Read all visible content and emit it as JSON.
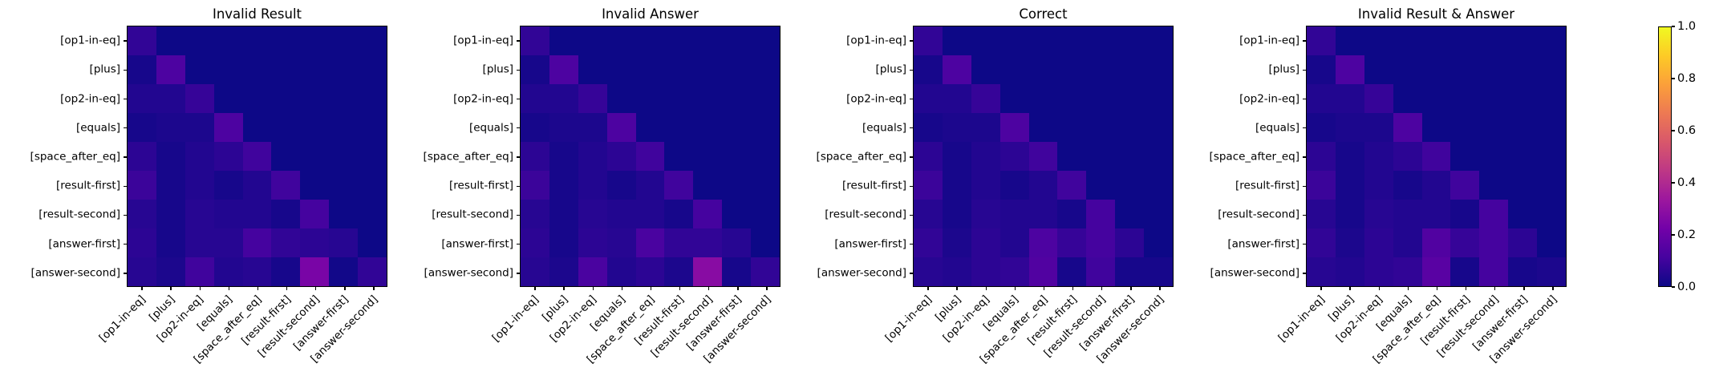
{
  "figure": {
    "background_color": "#ffffff",
    "text_color": "#000000"
  },
  "chart_data": {
    "type": "heatmap",
    "layout": "4 heatmaps side by side sharing one colorbar on the right",
    "colormap": "plasma",
    "vmin": 0.0,
    "vmax": 1.0,
    "grid": false,
    "colormap_anchors": [
      "#0d0887",
      "#46039f",
      "#7201a8",
      "#9c179e",
      "#bd3786",
      "#d8576b",
      "#ed7953",
      "#fb9f3a",
      "#fdca26",
      "#f0f921"
    ],
    "row_labels": [
      "[op1-in-eq]",
      "[plus]",
      "[op2-in-eq]",
      "[equals]",
      "[space_after_eq]",
      "[result-first]",
      "[result-second]",
      "[answer-first]",
      "[answer-second]"
    ],
    "col_labels": [
      "[op1-in-eq]",
      "[plus]",
      "[op2-in-eq]",
      "[equals]",
      "[space_after_eq]",
      "[result-first]",
      "[result-second]",
      "[answer-first]",
      "[answer-second]"
    ],
    "colorbar": {
      "tick_values": [
        0.0,
        0.2,
        0.4,
        0.6,
        0.8,
        1.0
      ],
      "tick_labels": [
        "0.0",
        "0.2",
        "0.4",
        "0.6",
        "0.8",
        "1.0"
      ]
    },
    "charts": [
      {
        "title": "Invalid Result",
        "values": [
          [
            0.07,
            0,
            0,
            0,
            0,
            0,
            0,
            0,
            0
          ],
          [
            0.02,
            0.13,
            0,
            0,
            0,
            0,
            0,
            0,
            0
          ],
          [
            0.04,
            0.04,
            0.08,
            0,
            0,
            0,
            0,
            0,
            0
          ],
          [
            0.02,
            0.03,
            0.03,
            0.13,
            0,
            0,
            0,
            0,
            0
          ],
          [
            0.06,
            0.02,
            0.04,
            0.06,
            0.1,
            0,
            0,
            0,
            0
          ],
          [
            0.09,
            0.02,
            0.04,
            0.02,
            0.04,
            0.1,
            0,
            0,
            0
          ],
          [
            0.05,
            0.02,
            0.05,
            0.04,
            0.04,
            0.02,
            0.11,
            0,
            0
          ],
          [
            0.06,
            0.02,
            0.05,
            0.05,
            0.11,
            0.07,
            0.06,
            0.05,
            0
          ],
          [
            0.05,
            0.03,
            0.1,
            0.04,
            0.05,
            0.02,
            0.24,
            0.01,
            0.07
          ]
        ]
      },
      {
        "title": "Invalid Answer",
        "values": [
          [
            0.07,
            0,
            0,
            0,
            0,
            0,
            0,
            0,
            0
          ],
          [
            0.02,
            0.13,
            0,
            0,
            0,
            0,
            0,
            0,
            0
          ],
          [
            0.04,
            0.04,
            0.08,
            0,
            0,
            0,
            0,
            0,
            0
          ],
          [
            0.02,
            0.03,
            0.03,
            0.13,
            0,
            0,
            0,
            0,
            0
          ],
          [
            0.06,
            0.02,
            0.04,
            0.06,
            0.1,
            0,
            0,
            0,
            0
          ],
          [
            0.09,
            0.02,
            0.04,
            0.02,
            0.04,
            0.1,
            0,
            0,
            0
          ],
          [
            0.05,
            0.02,
            0.05,
            0.04,
            0.04,
            0.02,
            0.11,
            0,
            0
          ],
          [
            0.06,
            0.02,
            0.06,
            0.05,
            0.12,
            0.07,
            0.07,
            0.05,
            0
          ],
          [
            0.05,
            0.03,
            0.12,
            0.04,
            0.06,
            0.03,
            0.28,
            0.02,
            0.07
          ]
        ]
      },
      {
        "title": "Correct",
        "values": [
          [
            0.07,
            0,
            0,
            0,
            0,
            0,
            0,
            0,
            0
          ],
          [
            0.02,
            0.13,
            0,
            0,
            0,
            0,
            0,
            0,
            0
          ],
          [
            0.04,
            0.04,
            0.08,
            0,
            0,
            0,
            0,
            0,
            0
          ],
          [
            0.02,
            0.03,
            0.03,
            0.13,
            0,
            0,
            0,
            0,
            0
          ],
          [
            0.06,
            0.02,
            0.04,
            0.06,
            0.1,
            0,
            0,
            0,
            0
          ],
          [
            0.09,
            0.02,
            0.04,
            0.02,
            0.04,
            0.1,
            0,
            0,
            0
          ],
          [
            0.05,
            0.02,
            0.05,
            0.04,
            0.04,
            0.02,
            0.11,
            0,
            0
          ],
          [
            0.07,
            0.03,
            0.06,
            0.04,
            0.13,
            0.08,
            0.11,
            0.06,
            0
          ],
          [
            0.05,
            0.04,
            0.06,
            0.07,
            0.14,
            0.02,
            0.1,
            0.02,
            0.02
          ]
        ]
      },
      {
        "title": "Invalid Result & Answer",
        "values": [
          [
            0.07,
            0,
            0,
            0,
            0,
            0,
            0,
            0,
            0
          ],
          [
            0.02,
            0.13,
            0,
            0,
            0,
            0,
            0,
            0,
            0
          ],
          [
            0.04,
            0.04,
            0.08,
            0,
            0,
            0,
            0,
            0,
            0
          ],
          [
            0.02,
            0.03,
            0.03,
            0.13,
            0,
            0,
            0,
            0,
            0
          ],
          [
            0.06,
            0.02,
            0.04,
            0.06,
            0.1,
            0,
            0,
            0,
            0
          ],
          [
            0.09,
            0.02,
            0.04,
            0.02,
            0.04,
            0.1,
            0,
            0,
            0
          ],
          [
            0.05,
            0.02,
            0.05,
            0.04,
            0.04,
            0.02,
            0.11,
            0,
            0
          ],
          [
            0.07,
            0.03,
            0.06,
            0.04,
            0.14,
            0.08,
            0.11,
            0.06,
            0
          ],
          [
            0.05,
            0.04,
            0.06,
            0.07,
            0.16,
            0.02,
            0.11,
            0.02,
            0.03
          ]
        ]
      }
    ]
  }
}
